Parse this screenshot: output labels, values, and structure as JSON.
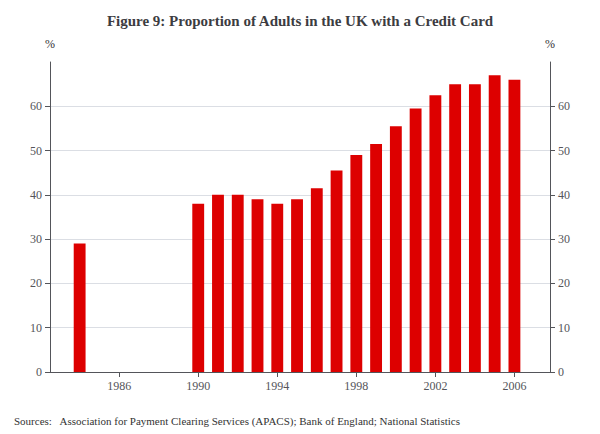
{
  "chart_data": {
    "type": "bar",
    "title": "Figure 9: Proportion of Adults in the UK with a Credit Card",
    "ylabel": "%",
    "y2label": "%",
    "annotations": [
      "Sources:   Association for Payment Clearing Services (APACS); Bank of England; National Statistics"
    ],
    "x": [
      1984,
      1990,
      1991,
      1992,
      1993,
      1994,
      1995,
      1996,
      1997,
      1998,
      1999,
      2000,
      2001,
      2002,
      2003,
      2004,
      2005,
      2006
    ],
    "values": [
      29,
      38,
      40,
      40,
      39,
      38,
      39,
      41.5,
      45.5,
      49,
      51.5,
      55.5,
      59.5,
      62.5,
      65,
      65,
      67,
      66
    ],
    "color": "#dd0000",
    "xlim": [
      1982.5,
      2007.8
    ],
    "xticks": [
      1986,
      1990,
      1994,
      1998,
      2002,
      2006
    ],
    "ylim": [
      0,
      70
    ],
    "yticks": [
      0,
      10,
      20,
      30,
      40,
      50,
      60
    ],
    "y2lim": [
      0,
      70
    ],
    "y2ticks": [
      0,
      10,
      20,
      30,
      40,
      50,
      60
    ],
    "grid": true
  }
}
